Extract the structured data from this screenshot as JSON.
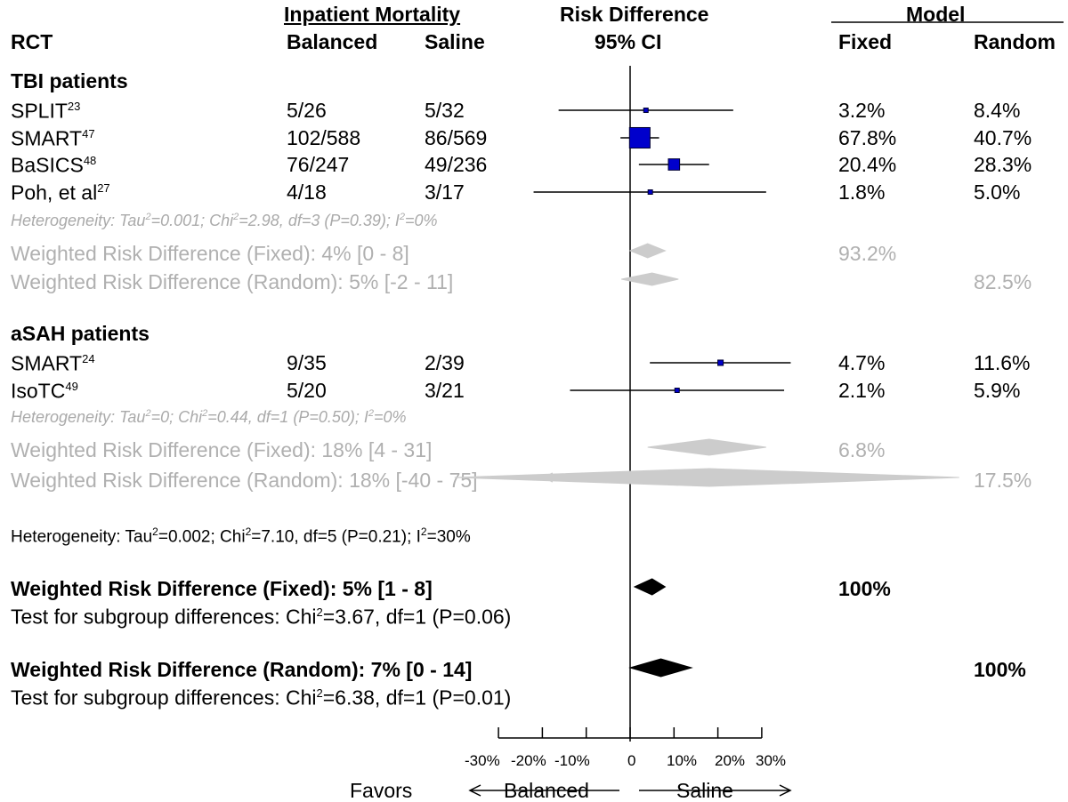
{
  "header": {
    "group_mortality": "Inpatient Mortality",
    "col_rct": "RCT",
    "col_balanced": "Balanced",
    "col_saline": "Saline",
    "col_rd_title": "Risk Difference",
    "col_rd_ci": "95% CI",
    "group_model": "Model",
    "col_fixed": "Fixed",
    "col_random": "Random"
  },
  "subgroups": [
    {
      "title": "TBI patients",
      "studies": [
        {
          "name": "SPLIT",
          "ref": "23",
          "balanced": "5/26",
          "saline": "5/32",
          "fixed": "3.2%",
          "random": "8.4%"
        },
        {
          "name": "SMART",
          "ref": "47",
          "balanced": "102/588",
          "saline": "86/569",
          "fixed": "67.8%",
          "random": "40.7%"
        },
        {
          "name": "BaSICS",
          "ref": "48",
          "balanced": "76/247",
          "saline": "49/236",
          "fixed": "20.4%",
          "random": "28.3%"
        },
        {
          "name": "Poh, et al",
          "ref": "27",
          "balanced": "4/18",
          "saline": "3/17",
          "fixed": "1.8%",
          "random": "5.0%"
        }
      ],
      "heterogeneity": {
        "p1": "Heterogeneity: Tau",
        "s1": "2",
        "p2": "=0.001; Chi",
        "s2": "2",
        "p3": "=2.98, df=3 (P=0.39); I",
        "s3": "2",
        "p4": "=0%"
      },
      "fixed_summary": {
        "label": "Weighted Risk Difference (Fixed): 4% [0 - 8]",
        "weight": "93.2%"
      },
      "random_summary": {
        "label": "Weighted Risk Difference (Random): 5% [-2 - 11]",
        "weight": "82.5%"
      }
    },
    {
      "title": "aSAH patients",
      "studies": [
        {
          "name": "SMART",
          "ref": "24",
          "balanced": "9/35",
          "saline": "2/39",
          "fixed": "4.7%",
          "random": "11.6%"
        },
        {
          "name": "IsoTC",
          "ref": "49",
          "balanced": "5/20",
          "saline": "3/21",
          "fixed": "2.1%",
          "random": "5.9%"
        }
      ],
      "heterogeneity": {
        "p1": "Heterogeneity: Tau",
        "s1": "2",
        "p2": "=0; Chi",
        "s2": "2",
        "p3": "=0.44, df=1 (P=0.50); I",
        "s3": "2",
        "p4": "=0%"
      },
      "fixed_summary": {
        "label": "Weighted Risk Difference (Fixed): 18% [4 - 31]",
        "weight": "6.8%"
      },
      "random_summary": {
        "label": "Weighted Risk Difference (Random): 18% [-40 - 75]",
        "weight": "17.5%"
      }
    }
  ],
  "overall": {
    "heterogeneity": {
      "p1": "Heterogeneity: Tau",
      "s1": "2",
      "p2": "=0.002; Chi",
      "s2": "2",
      "p3": "=7.10, df=5 (P=0.21); I",
      "s3": "2",
      "p4": "=30%"
    },
    "fixed": {
      "label": "Weighted Risk Difference (Fixed): 5% [1 - 8]",
      "weight": "100%",
      "test": {
        "p1": "Test for subgroup differences: Chi",
        "s1": "2",
        "p2": "=3.67, df=1 (P=0.06)"
      }
    },
    "random": {
      "label": "Weighted Risk Difference (Random): 7% [0 - 14]",
      "weight": "100%",
      "test": {
        "p1": "Test for subgroup differences: Chi",
        "s1": "2",
        "p2": "=6.38, df=1 (P=0.01)"
      }
    }
  },
  "axis": {
    "tick_labels": [
      "-30%",
      "-20%",
      "-10%",
      "0",
      "10%",
      "20%",
      "30%"
    ],
    "favors": "Favors",
    "left_label": "Balanced",
    "right_label": "Saline"
  },
  "chart_data": {
    "type": "forest",
    "x_range": [
      -30,
      30
    ],
    "ticks": [
      -30,
      -20,
      -10,
      0,
      10,
      20,
      30
    ],
    "colors": {
      "study_box": "#0000cc",
      "summary_grey": "#cccccc",
      "summary_overall": "#000000"
    },
    "studies": [
      {
        "group": "TBI patients",
        "name": "SPLIT",
        "est": 3.6,
        "lo": -16.3,
        "hi": 23.5,
        "weight_fixed": 3.2
      },
      {
        "group": "TBI patients",
        "name": "SMART",
        "est": 2.2,
        "lo": -2.2,
        "hi": 6.6,
        "weight_fixed": 67.8
      },
      {
        "group": "TBI patients",
        "name": "BaSICS",
        "est": 10.0,
        "lo": 2.0,
        "hi": 18.0,
        "weight_fixed": 20.4
      },
      {
        "group": "TBI patients",
        "name": "Poh, et al",
        "est": 4.6,
        "lo": -22.0,
        "hi": 31.0,
        "weight_fixed": 1.8
      },
      {
        "group": "aSAH patients",
        "name": "SMART",
        "est": 20.6,
        "lo": 4.5,
        "hi": 36.6,
        "weight_fixed": 4.7
      },
      {
        "group": "aSAH patients",
        "name": "IsoTC",
        "est": 10.7,
        "lo": -13.7,
        "hi": 35.1,
        "weight_fixed": 2.1
      }
    ],
    "summaries": [
      {
        "group": "TBI patients",
        "model": "Fixed",
        "est": 4,
        "lo": 0,
        "hi": 8
      },
      {
        "group": "TBI patients",
        "model": "Random",
        "est": 5,
        "lo": -2,
        "hi": 11
      },
      {
        "group": "aSAH patients",
        "model": "Fixed",
        "est": 18,
        "lo": 4,
        "hi": 31
      },
      {
        "group": "aSAH patients",
        "model": "Random",
        "est": 18,
        "lo": -40,
        "hi": 75
      },
      {
        "group": "Overall",
        "model": "Fixed",
        "est": 5,
        "lo": 1,
        "hi": 8
      },
      {
        "group": "Overall",
        "model": "Random",
        "est": 7,
        "lo": 0,
        "hi": 14
      }
    ]
  }
}
